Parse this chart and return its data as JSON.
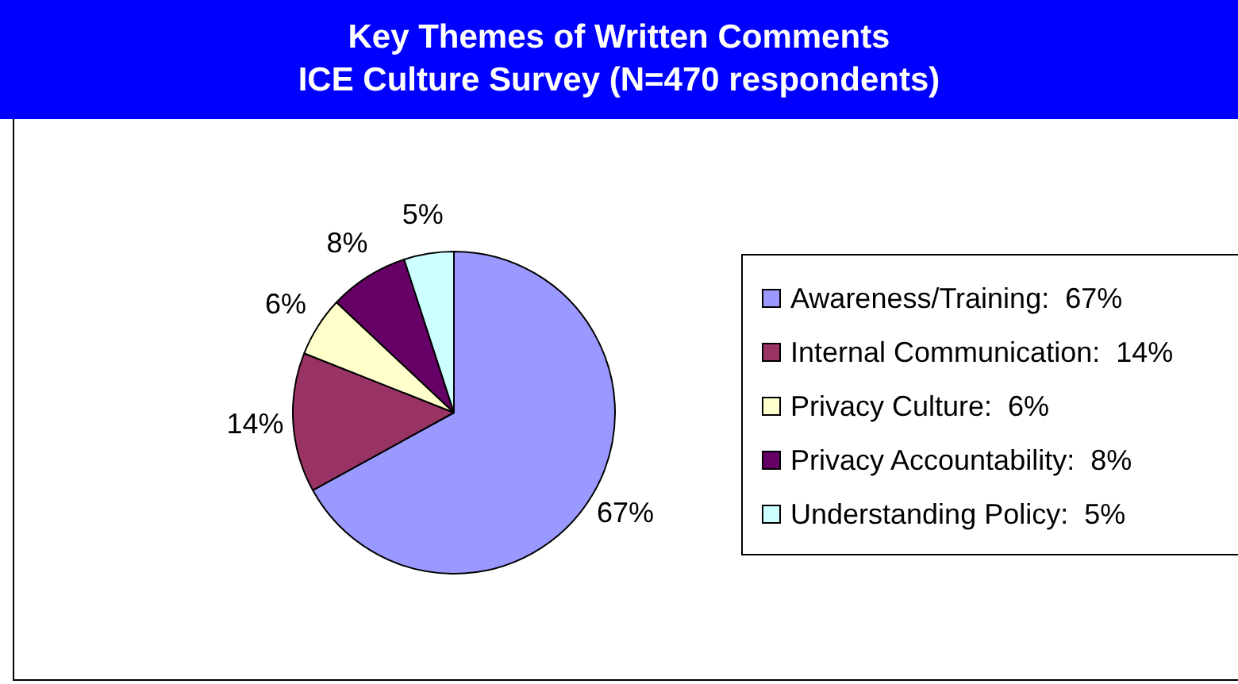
{
  "chart_data": {
    "type": "pie",
    "title": "Key Themes of Written Comments",
    "subtitle": "ICE Culture Survey (N=470 respondents)",
    "categories": [
      "Awareness/Training",
      "Internal Communication",
      "Privacy Culture",
      "Privacy Accountability",
      "Understanding Policy"
    ],
    "values": [
      67,
      14,
      6,
      8,
      5
    ],
    "value_labels": [
      "67%",
      "14%",
      "6%",
      "8%",
      "5%"
    ],
    "colors": [
      "#9999ff",
      "#993366",
      "#ffffcc",
      "#660066",
      "#ccffff"
    ],
    "legend": "right"
  }
}
